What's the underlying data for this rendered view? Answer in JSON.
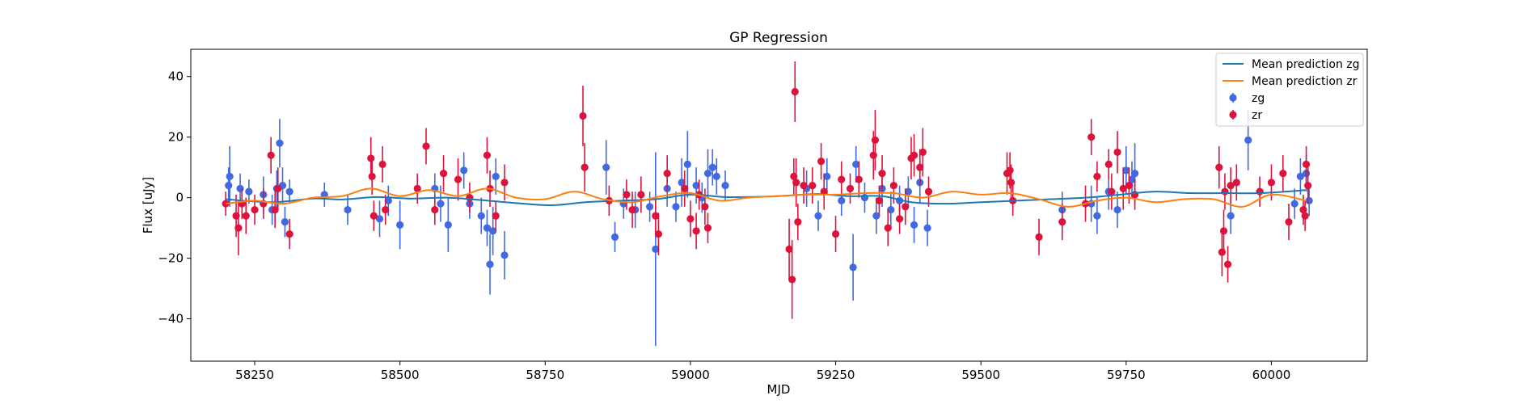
{
  "chart_data": {
    "type": "scatter",
    "title": "GP Regression",
    "xlabel": "MJD",
    "ylabel": "Flux [uJy]",
    "xlim": [
      58140,
      60165
    ],
    "ylim": [
      -54,
      49
    ],
    "xticks": [
      58250,
      58500,
      58750,
      59000,
      59250,
      59500,
      59750,
      60000
    ],
    "yticks": [
      -40,
      -20,
      0,
      20,
      40
    ],
    "grid": false,
    "legend_position": "top-right",
    "colors": {
      "zg_points": "#4169e1",
      "zr_points": "#dc143c",
      "zg_mean": "#1f77b4",
      "zr_mean": "#ff7f0e"
    },
    "series": [
      {
        "name": "Mean prediction zg",
        "kind": "line",
        "color": "#1f77b4",
        "x": [
          58200,
          58280,
          58350,
          58400,
          58460,
          58520,
          58580,
          58640,
          58700,
          58760,
          58820,
          58880,
          58940,
          59000,
          59060,
          59120,
          59170,
          59220,
          59270,
          59330,
          59380,
          59440,
          59500,
          59560,
          59620,
          59680,
          59740,
          59800,
          59860,
          59920,
          59980,
          60060
        ],
        "y": [
          -0.5,
          -1.5,
          -0.3,
          -0.6,
          0.2,
          -0.3,
          0.0,
          -0.8,
          -1.8,
          -2.5,
          -1.5,
          -1.0,
          -0.5,
          1.0,
          0.2,
          0.3,
          0.7,
          1.2,
          0.5,
          0.5,
          -1.5,
          -2.0,
          -1.5,
          -1.0,
          -0.5,
          0.0,
          1.0,
          2.0,
          1.5,
          1.5,
          1.5,
          2.5
        ]
      },
      {
        "name": "Mean prediction zr",
        "kind": "line",
        "color": "#ff7f0e",
        "x": [
          58200,
          58250,
          58300,
          58350,
          58400,
          58450,
          58500,
          58550,
          58600,
          58650,
          58700,
          58750,
          58800,
          58850,
          58900,
          58950,
          59000,
          59050,
          59100,
          59150,
          59200,
          59250,
          59300,
          59350,
          59400,
          59450,
          59500,
          59550,
          59600,
          59650,
          59700,
          59750,
          59800,
          59850,
          59900,
          59950,
          60000,
          60060
        ],
        "y": [
          -2.0,
          -1.0,
          -2.0,
          0.0,
          0.5,
          3.0,
          0.5,
          2.5,
          0.5,
          3.0,
          0.0,
          -0.5,
          2.0,
          -0.5,
          -1.5,
          0.5,
          1.5,
          -1.0,
          0.0,
          0.5,
          1.0,
          1.0,
          1.5,
          1.5,
          0.0,
          2.0,
          1.0,
          1.5,
          -0.5,
          -3.0,
          -1.0,
          0.0,
          -1.5,
          -0.5,
          -0.5,
          -3.0,
          1.0,
          -1.0
        ]
      },
      {
        "name": "zg",
        "kind": "errorbar",
        "color": "#4169e1",
        "points": [
          [
            58205,
            4,
            6
          ],
          [
            58207,
            7,
            10
          ],
          [
            58225,
            3,
            5
          ],
          [
            58240,
            2,
            4
          ],
          [
            58265,
            1,
            6
          ],
          [
            58280,
            -4,
            5
          ],
          [
            58288,
            3,
            6
          ],
          [
            58293,
            18,
            8
          ],
          [
            58298,
            4,
            6
          ],
          [
            58302,
            -8,
            5
          ],
          [
            58310,
            2,
            4
          ],
          [
            58370,
            1,
            4
          ],
          [
            58410,
            -4,
            5
          ],
          [
            58465,
            -7,
            6
          ],
          [
            58480,
            -1,
            5
          ],
          [
            58500,
            -9,
            8
          ],
          [
            58560,
            3,
            5
          ],
          [
            58570,
            -2,
            6
          ],
          [
            58583,
            -9,
            9
          ],
          [
            58610,
            9,
            6
          ],
          [
            58620,
            -2,
            5
          ],
          [
            58640,
            -6,
            6
          ],
          [
            58650,
            -10,
            6
          ],
          [
            58655,
            -22,
            10
          ],
          [
            58660,
            -11,
            8
          ],
          [
            58665,
            7,
            6
          ],
          [
            58680,
            -19,
            8
          ],
          [
            58855,
            10,
            9
          ],
          [
            58870,
            -13,
            5
          ],
          [
            58885,
            -2,
            5
          ],
          [
            58905,
            -4,
            6
          ],
          [
            58930,
            -3,
            5
          ],
          [
            58940,
            -17,
            32
          ],
          [
            58960,
            3,
            6
          ],
          [
            58975,
            -3,
            5
          ],
          [
            58985,
            5,
            8
          ],
          [
            58995,
            11,
            11
          ],
          [
            59010,
            4,
            6
          ],
          [
            59020,
            0,
            5
          ],
          [
            59030,
            8,
            8
          ],
          [
            59038,
            10,
            6
          ],
          [
            59045,
            7,
            6
          ],
          [
            59060,
            4,
            5
          ],
          [
            59200,
            3,
            6
          ],
          [
            59220,
            -6,
            5
          ],
          [
            59235,
            7,
            6
          ],
          [
            59260,
            -1,
            5
          ],
          [
            59280,
            -23,
            11
          ],
          [
            59285,
            11,
            6
          ],
          [
            59300,
            0,
            5
          ],
          [
            59320,
            -6,
            6
          ],
          [
            59330,
            3,
            6
          ],
          [
            59345,
            -4,
            6
          ],
          [
            59360,
            -1,
            5
          ],
          [
            59375,
            2,
            5
          ],
          [
            59385,
            -9,
            6
          ],
          [
            59395,
            5,
            7
          ],
          [
            59408,
            -10,
            6
          ],
          [
            59640,
            -4,
            6
          ],
          [
            59690,
            -2,
            6
          ],
          [
            59700,
            -6,
            6
          ],
          [
            59720,
            2,
            6
          ],
          [
            59735,
            -4,
            6
          ],
          [
            59750,
            9,
            8
          ],
          [
            59760,
            6,
            6
          ],
          [
            59765,
            8,
            10
          ],
          [
            59930,
            -6,
            6
          ],
          [
            59960,
            19,
            10
          ],
          [
            60040,
            -2,
            5
          ],
          [
            60050,
            7,
            6
          ],
          [
            60060,
            8,
            6
          ],
          [
            60065,
            -1,
            5
          ]
        ]
      },
      {
        "name": "zr",
        "kind": "errorbar",
        "color": "#dc143c",
        "points": [
          [
            58200,
            -2,
            4
          ],
          [
            58218,
            -6,
            7
          ],
          [
            58222,
            -10,
            9
          ],
          [
            58228,
            -2,
            5
          ],
          [
            58235,
            -6,
            6
          ],
          [
            58250,
            -4,
            5
          ],
          [
            58265,
            -2,
            5
          ],
          [
            58278,
            14,
            6
          ],
          [
            58285,
            -4,
            6
          ],
          [
            58290,
            3,
            7
          ],
          [
            58310,
            -12,
            5
          ],
          [
            58450,
            13,
            7
          ],
          [
            58452,
            7,
            6
          ],
          [
            58455,
            -6,
            5
          ],
          [
            58470,
            11,
            6
          ],
          [
            58475,
            -4,
            5
          ],
          [
            58530,
            3,
            5
          ],
          [
            58545,
            17,
            6
          ],
          [
            58560,
            -4,
            5
          ],
          [
            58575,
            8,
            6
          ],
          [
            58600,
            6,
            7
          ],
          [
            58620,
            0,
            5
          ],
          [
            58650,
            14,
            6
          ],
          [
            58655,
            3,
            6
          ],
          [
            58665,
            -6,
            5
          ],
          [
            58680,
            5,
            6
          ],
          [
            58815,
            27,
            10
          ],
          [
            58818,
            10,
            8
          ],
          [
            58860,
            -1,
            5
          ],
          [
            58890,
            1,
            5
          ],
          [
            58900,
            -4,
            6
          ],
          [
            58915,
            1,
            6
          ],
          [
            58940,
            -6,
            6
          ],
          [
            58945,
            -12,
            7
          ],
          [
            58960,
            8,
            6
          ],
          [
            58990,
            3,
            6
          ],
          [
            59000,
            -7,
            6
          ],
          [
            59010,
            -11,
            6
          ],
          [
            59015,
            1,
            5
          ],
          [
            59025,
            -3,
            6
          ],
          [
            59030,
            -10,
            5
          ],
          [
            59170,
            -17,
            10
          ],
          [
            59175,
            -27,
            13
          ],
          [
            59178,
            7,
            6
          ],
          [
            59180,
            35,
            10
          ],
          [
            59182,
            5,
            8
          ],
          [
            59185,
            -8,
            6
          ],
          [
            59195,
            4,
            6
          ],
          [
            59210,
            4,
            6
          ],
          [
            59225,
            12,
            6
          ],
          [
            59230,
            2,
            6
          ],
          [
            59250,
            -12,
            6
          ],
          [
            59260,
            6,
            6
          ],
          [
            59275,
            3,
            5
          ],
          [
            59290,
            6,
            6
          ],
          [
            59315,
            14,
            8
          ],
          [
            59318,
            19,
            10
          ],
          [
            59325,
            -1,
            5
          ],
          [
            59330,
            8,
            6
          ],
          [
            59340,
            -10,
            6
          ],
          [
            59350,
            4,
            6
          ],
          [
            59360,
            -7,
            5
          ],
          [
            59370,
            -3,
            6
          ],
          [
            59380,
            13,
            7
          ],
          [
            59385,
            14,
            7
          ],
          [
            59395,
            10,
            6
          ],
          [
            59400,
            15,
            8
          ],
          [
            59410,
            2,
            5
          ],
          [
            59545,
            8,
            7
          ],
          [
            59550,
            9,
            6
          ],
          [
            59552,
            5,
            6
          ],
          [
            59555,
            -1,
            5
          ],
          [
            59600,
            -13,
            6
          ],
          [
            59640,
            -8,
            6
          ],
          [
            59680,
            -2,
            6
          ],
          [
            59690,
            20,
            6
          ],
          [
            59700,
            7,
            5
          ],
          [
            59720,
            11,
            5
          ],
          [
            59725,
            2,
            6
          ],
          [
            59735,
            15,
            7
          ],
          [
            59745,
            3,
            7
          ],
          [
            59755,
            4,
            6
          ],
          [
            59765,
            1,
            5
          ],
          [
            59910,
            10,
            7
          ],
          [
            59915,
            -18,
            8
          ],
          [
            59918,
            -11,
            7
          ],
          [
            59920,
            2,
            6
          ],
          [
            59925,
            -22,
            6
          ],
          [
            59930,
            4,
            6
          ],
          [
            59940,
            5,
            6
          ],
          [
            59980,
            2,
            5
          ],
          [
            60000,
            5,
            6
          ],
          [
            60020,
            8,
            6
          ],
          [
            60030,
            -8,
            6
          ],
          [
            60055,
            -4,
            5
          ],
          [
            60058,
            -6,
            5
          ],
          [
            60060,
            11,
            6
          ],
          [
            60063,
            4,
            6
          ]
        ]
      }
    ]
  }
}
